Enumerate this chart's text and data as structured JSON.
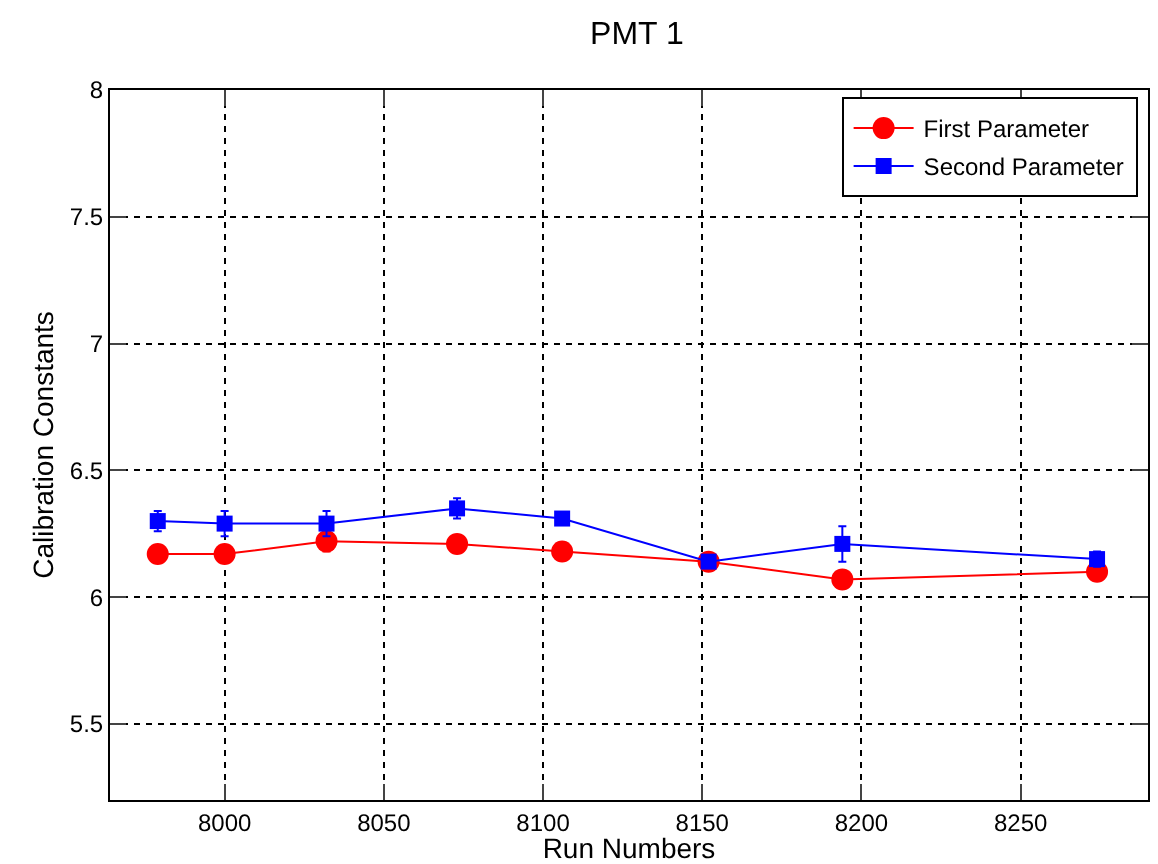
{
  "chart_data": {
    "type": "line",
    "title": "PMT 1",
    "xlabel": "Run Numbers",
    "ylabel": "Calibration Constants",
    "x": [
      7979,
      8000,
      8032,
      8073,
      8106,
      8152,
      8194,
      8274
    ],
    "series": [
      {
        "name": "First Parameter",
        "color": "#ff0000",
        "marker": "circle",
        "values": [
          6.17,
          6.17,
          6.22,
          6.21,
          6.18,
          6.14,
          6.07,
          6.1
        ],
        "errors": [
          null,
          0.03,
          0.04,
          0.03,
          null,
          null,
          null,
          null
        ]
      },
      {
        "name": "Second Parameter",
        "color": "#0000ff",
        "marker": "square",
        "values": [
          6.3,
          6.29,
          6.29,
          6.35,
          6.31,
          6.14,
          6.21,
          6.15
        ],
        "errors": [
          0.04,
          0.05,
          0.05,
          0.04,
          null,
          null,
          0.07,
          0.03
        ]
      }
    ],
    "xlim": [
      7964,
      8290
    ],
    "xticks": [
      8000,
      8050,
      8100,
      8150,
      8200,
      8250
    ],
    "ylim": [
      5.2,
      8
    ],
    "yticks": [
      5.5,
      6,
      6.5,
      7,
      7.5,
      8
    ],
    "grid": true,
    "legend": "top right",
    "line_style": "solid"
  }
}
